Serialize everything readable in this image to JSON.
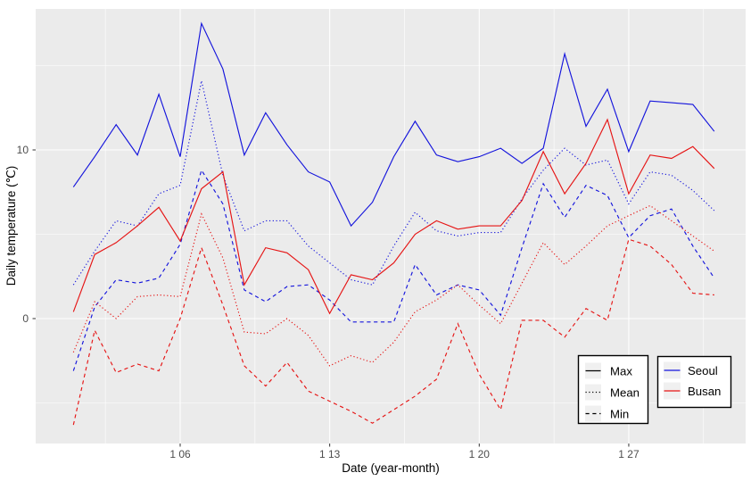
{
  "chart_data": {
    "type": "line",
    "title": "",
    "xlabel": "Date (year-month)",
    "ylabel": "Daily temperature (℃)",
    "x_unit": "day of January",
    "days": [
      1,
      2,
      3,
      4,
      5,
      6,
      7,
      8,
      9,
      10,
      11,
      12,
      13,
      14,
      15,
      16,
      17,
      18,
      19,
      20,
      21,
      22,
      23,
      24,
      25,
      26,
      27,
      28,
      29,
      30,
      31
    ],
    "x_tick_labels": [
      "1 06",
      "1 13",
      "1 20",
      "1 27"
    ],
    "x_tick_days": [
      6,
      13,
      20,
      27
    ],
    "x_minor_days": [
      2.5,
      9.5,
      16.5,
      23.5,
      30.5
    ],
    "y_ticks": [
      0,
      10
    ],
    "y_minor_ticks": [
      -5,
      5,
      15
    ],
    "ylim": [
      -7.4,
      18.35
    ],
    "grid": true,
    "legend_position": "inside bottom-right",
    "series": [
      {
        "name": "Seoul Max",
        "city": "Seoul",
        "stat": "Max",
        "values": [
          7.8,
          9.6,
          11.5,
          9.7,
          13.3,
          9.6,
          17.5,
          14.8,
          9.7,
          12.2,
          10.3,
          8.7,
          8.1,
          5.5,
          6.9,
          9.6,
          11.7,
          9.7,
          9.3,
          9.6,
          10.1,
          9.2,
          10.1,
          15.7,
          11.4,
          13.6,
          9.9,
          12.9,
          12.8,
          12.7,
          11.1
        ]
      },
      {
        "name": "Seoul Mean",
        "city": "Seoul",
        "stat": "Mean",
        "values": [
          2.0,
          4.0,
          5.8,
          5.5,
          7.4,
          7.9,
          14.1,
          8.5,
          5.2,
          5.8,
          5.8,
          4.3,
          3.3,
          2.3,
          2.0,
          4.3,
          6.3,
          5.2,
          4.9,
          5.1,
          5.1,
          7.1,
          8.8,
          10.1,
          9.1,
          9.4,
          6.8,
          8.7,
          8.5,
          7.6,
          6.4
        ]
      },
      {
        "name": "Seoul Min",
        "city": "Seoul",
        "stat": "Min",
        "values": [
          -3.1,
          0.7,
          2.3,
          2.1,
          2.4,
          4.4,
          8.8,
          6.8,
          1.7,
          1.0,
          1.9,
          2.0,
          1.1,
          -0.2,
          -0.2,
          -0.2,
          3.2,
          1.4,
          2.0,
          1.7,
          0.2,
          4.2,
          8.0,
          6.0,
          7.9,
          7.3,
          4.8,
          6.1,
          6.5,
          4.3,
          2.4
        ]
      },
      {
        "name": "Busan Max",
        "city": "Busan",
        "stat": "Max",
        "values": [
          0.4,
          3.8,
          4.5,
          5.5,
          6.6,
          4.6,
          7.7,
          8.7,
          2.0,
          4.2,
          3.9,
          2.9,
          0.3,
          2.6,
          2.3,
          3.3,
          5.0,
          5.8,
          5.3,
          5.5,
          5.5,
          7.0,
          9.9,
          7.4,
          9.2,
          11.8,
          7.4,
          9.7,
          9.5,
          10.2,
          8.9
        ]
      },
      {
        "name": "Busan Mean",
        "city": "Busan",
        "stat": "Mean",
        "values": [
          -2.0,
          1.0,
          0.0,
          1.3,
          1.4,
          1.3,
          6.2,
          3.6,
          -0.8,
          -0.9,
          0.0,
          -1.0,
          -2.8,
          -2.2,
          -2.6,
          -1.4,
          0.4,
          1.1,
          2.0,
          0.8,
          -0.3,
          2.1,
          4.5,
          3.2,
          4.3,
          5.5,
          6.1,
          6.7,
          5.8,
          4.9,
          4.0
        ]
      },
      {
        "name": "Busan Min",
        "city": "Busan",
        "stat": "Min",
        "values": [
          -6.3,
          -0.7,
          -3.2,
          -2.7,
          -3.1,
          0.0,
          4.2,
          0.8,
          -2.8,
          -4.0,
          -2.6,
          -4.3,
          -4.9,
          -5.5,
          -6.2,
          -5.4,
          -4.6,
          -3.6,
          -0.3,
          -3.3,
          -5.4,
          -0.1,
          -0.1,
          -1.1,
          0.6,
          -0.1,
          4.7,
          4.3,
          3.2,
          1.5,
          1.4
        ]
      }
    ],
    "legends": {
      "linetype": {
        "items": [
          {
            "label": "Max",
            "dash": "solid"
          },
          {
            "label": "Mean",
            "dash": "dotted"
          },
          {
            "label": "Min",
            "dash": "dashed"
          }
        ]
      },
      "city": {
        "items": [
          {
            "label": "Seoul",
            "color_key": "seoul"
          },
          {
            "label": "Busan",
            "color_key": "busan"
          }
        ]
      }
    },
    "colors": {
      "seoul": "#1414dc",
      "busan": "#e61414",
      "panel_bg": "#ebebeb",
      "grid": "#ffffff",
      "axis_text": "#4d4d4d",
      "tick_mark": "#333333",
      "legend_bg": "#ffffff",
      "legend_border": "#000000",
      "legend_key_bg": "#f0f0f0"
    }
  }
}
